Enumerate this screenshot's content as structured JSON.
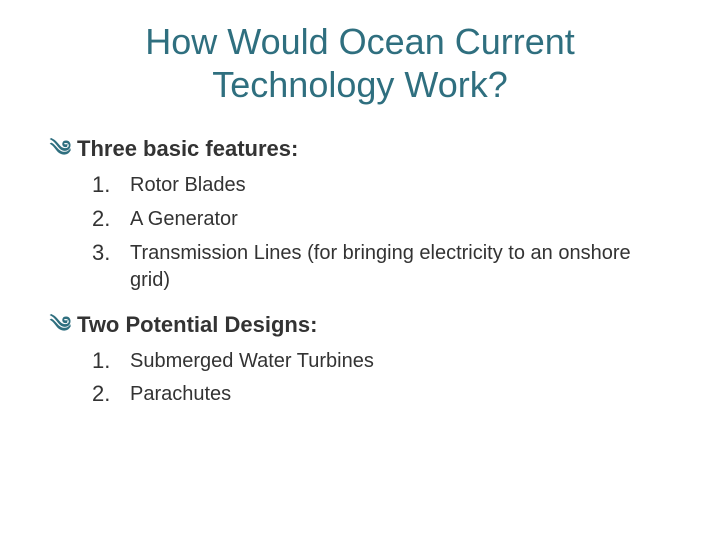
{
  "title_color": "#2f6f7f",
  "bullet_color": "#2f6f7f",
  "text_color": "#333333",
  "background_color": "#ffffff",
  "title": "How Would Ocean Current Technology Work?",
  "sections": [
    {
      "heading": "Three basic features:",
      "items": [
        {
          "num": "1.",
          "text": "Rotor Blades"
        },
        {
          "num": "2.",
          "text": "A Generator"
        },
        {
          "num": "3.",
          "text": "Transmission Lines (for bringing electricity to an onshore grid)"
        }
      ]
    },
    {
      "heading": "Two Potential Designs:",
      "items": [
        {
          "num": "1.",
          "text": "Submerged Water Turbines"
        },
        {
          "num": "2.",
          "text": "Parachutes"
        }
      ]
    }
  ]
}
